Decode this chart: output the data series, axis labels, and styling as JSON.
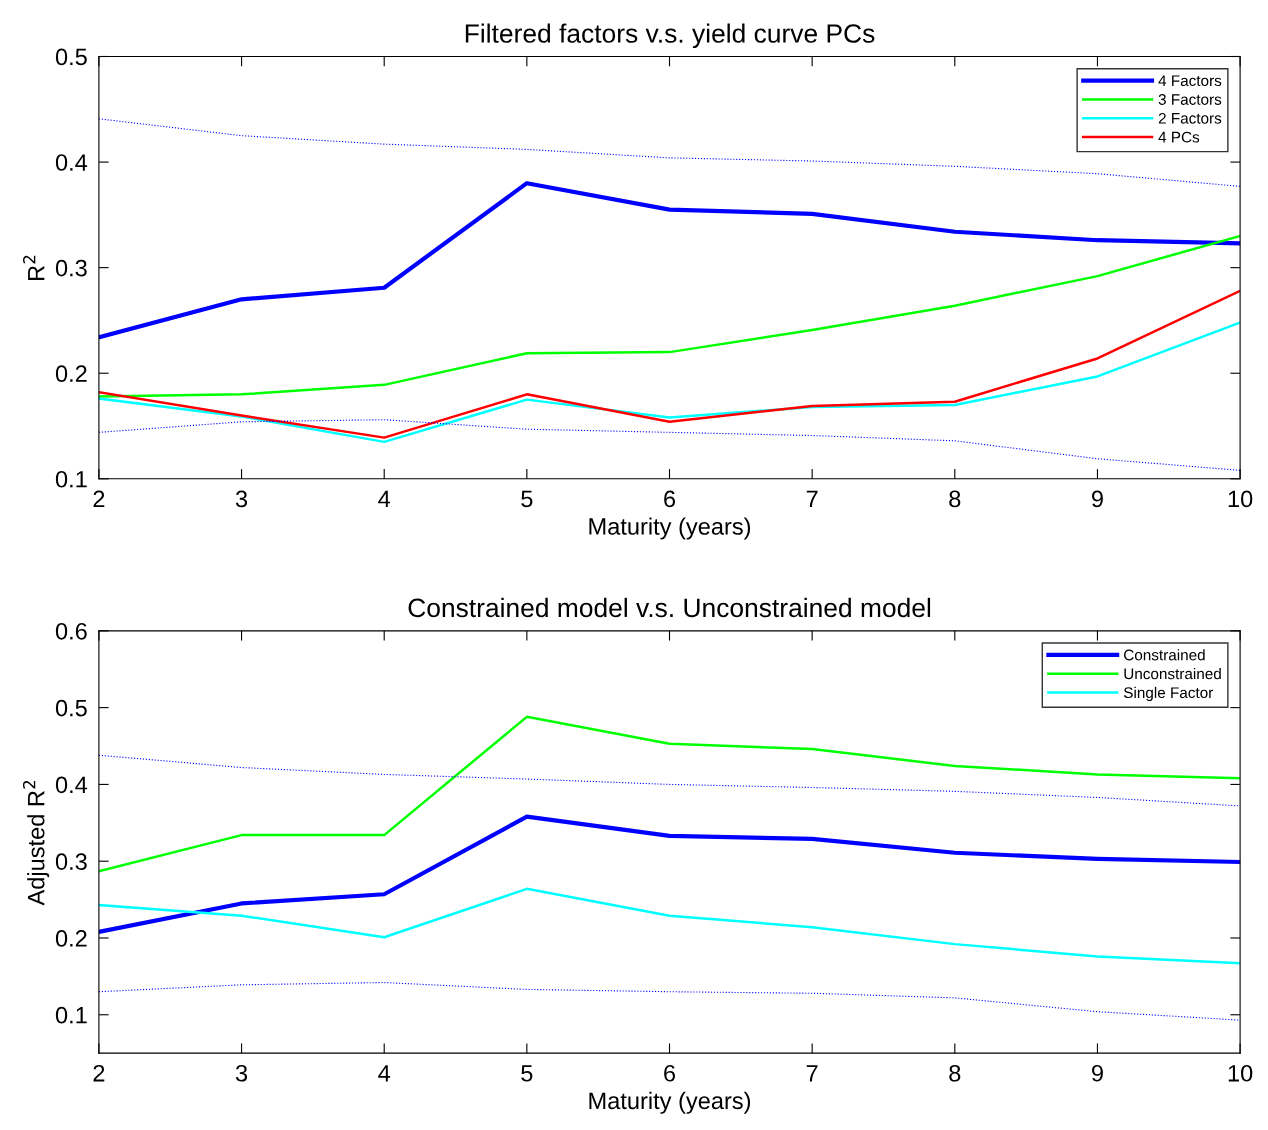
{
  "chart_data": [
    {
      "type": "line",
      "title": "Filtered factors v.s. yield curve PCs",
      "xlabel": "Maturity (years)",
      "ylabel": "R$^{2}$",
      "x": [
        2,
        3,
        4,
        5,
        6,
        7,
        8,
        9,
        10
      ],
      "xlim": [
        2,
        10
      ],
      "xticks": [
        2,
        3,
        4,
        5,
        6,
        7,
        8,
        9,
        10
      ],
      "ylim": [
        0.1,
        0.5
      ],
      "yticks": [
        0.1,
        0.2,
        0.3,
        0.4,
        0.5
      ],
      "grid": false,
      "legend": "top right",
      "marker": "none",
      "series": [
        {
          "name": "4 Factors",
          "color": "#0000ff",
          "line_style": "solid",
          "values": [
            0.234,
            0.27,
            0.281,
            0.38,
            0.355,
            0.351,
            0.334,
            0.326,
            0.323
          ]
        },
        {
          "name": "3 Factors",
          "color": "#00ff00",
          "line_style": "solid",
          "values": [
            0.178,
            0.18,
            0.189,
            0.219,
            0.22,
            0.241,
            0.264,
            0.292,
            0.33
          ]
        },
        {
          "name": "2 Factors",
          "color": "#00ffff",
          "line_style": "solid",
          "values": [
            0.176,
            0.159,
            0.135,
            0.175,
            0.158,
            0.168,
            0.17,
            0.197,
            0.248
          ]
        },
        {
          "name": "4 PCs",
          "color": "#ff0000",
          "line_style": "solid",
          "values": [
            0.182,
            0.16,
            0.139,
            0.18,
            0.154,
            0.169,
            0.173,
            0.214,
            0.278
          ]
        },
        {
          "color": "#0000ff",
          "line_style": "dotted",
          "values": [
            0.441,
            0.425,
            0.417,
            0.412,
            0.404,
            0.401,
            0.396,
            0.389,
            0.377
          ]
        },
        {
          "color": "#0000ff",
          "line_style": "dotted",
          "values": [
            0.144,
            0.154,
            0.156,
            0.147,
            0.144,
            0.141,
            0.136,
            0.119,
            0.108
          ]
        }
      ]
    },
    {
      "type": "line",
      "title": "Constrained model v.s. Unconstrained model",
      "xlabel": "Maturity (years)",
      "ylabel": "Adjusted R$^{2}$",
      "x": [
        2,
        3,
        4,
        5,
        6,
        7,
        8,
        9,
        10
      ],
      "xlim": [
        2,
        10
      ],
      "xticks": [
        2,
        3,
        4,
        5,
        6,
        7,
        8,
        9,
        10
      ],
      "ylim": [
        0.05,
        0.6
      ],
      "yticks": [
        0.1,
        0.2,
        0.3,
        0.4,
        0.5,
        0.6
      ],
      "grid": false,
      "legend": "top right",
      "marker": "none",
      "series": [
        {
          "name": "Constrained",
          "color": "#0000ff",
          "line_style": "solid",
          "values": [
            0.208,
            0.245,
            0.257,
            0.358,
            0.333,
            0.329,
            0.311,
            0.303,
            0.299
          ]
        },
        {
          "name": "Unconstrained",
          "color": "#00ff00",
          "line_style": "solid",
          "values": [
            0.287,
            0.334,
            0.334,
            0.488,
            0.453,
            0.446,
            0.424,
            0.413,
            0.408
          ]
        },
        {
          "name": "Single Factor",
          "color": "#00ffff",
          "line_style": "solid",
          "values": [
            0.243,
            0.229,
            0.201,
            0.264,
            0.229,
            0.214,
            0.192,
            0.176,
            0.167
          ]
        },
        {
          "color": "#0000ff",
          "line_style": "dotted",
          "values": [
            0.438,
            0.422,
            0.413,
            0.407,
            0.4,
            0.396,
            0.391,
            0.383,
            0.372
          ]
        },
        {
          "color": "#0000ff",
          "line_style": "dotted",
          "values": [
            0.13,
            0.139,
            0.142,
            0.133,
            0.13,
            0.128,
            0.122,
            0.104,
            0.093
          ]
        }
      ]
    }
  ]
}
